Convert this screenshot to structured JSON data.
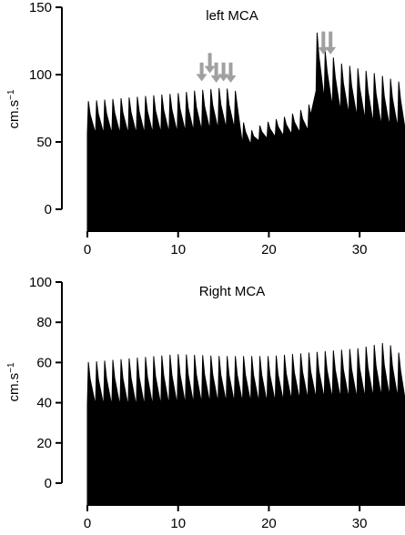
{
  "chart_data": [
    {
      "type": "area",
      "title": "left MCA",
      "ylabel": "cm.s",
      "ylabel_superscript": "−1",
      "xlim": [
        0,
        35
      ],
      "ylim": [
        0,
        150
      ],
      "x_ticks": [
        0,
        10,
        20,
        30
      ],
      "y_ticks": [
        0,
        50,
        100,
        150
      ],
      "x_tick_labels": [
        "0",
        "10",
        "20",
        "30"
      ],
      "y_tick_labels": [
        "0",
        "50",
        "100",
        "150"
      ],
      "baseline_value": -10,
      "color": "#000000",
      "beat_period_s": 0.9,
      "series": [
        {
          "envelope_x": [
            0,
            5,
            10,
            12,
            15,
            16.3,
            16.8,
            17.5,
            18,
            18.5,
            19,
            20,
            22,
            24,
            24.8,
            25.2,
            26,
            27,
            28,
            30,
            32,
            35
          ],
          "peak": [
            80,
            83,
            86,
            88,
            90,
            88,
            70,
            60,
            58,
            60,
            62,
            65,
            69,
            75,
            80,
            133,
            118,
            113,
            108,
            104,
            100,
            93
          ],
          "trough": [
            56,
            56,
            57,
            58,
            60,
            60,
            50,
            45,
            48,
            50,
            51,
            53,
            55,
            58,
            60,
            88,
            82,
            76,
            72,
            68,
            62,
            60
          ]
        }
      ],
      "annotation_arrows": {
        "color": "#a0a0a0",
        "x": [
          12.6,
          13.5,
          14.2,
          15.0,
          15.8,
          26.0,
          26.8
        ],
        "y_top": [
          109,
          116,
          109,
          109,
          109,
          132,
          132
        ],
        "y_tip": [
          95,
          101,
          94,
          95,
          94,
          115,
          115
        ]
      }
    },
    {
      "type": "area",
      "title": "Right MCA",
      "ylabel": "cm.s",
      "ylabel_superscript": "−1",
      "xlim": [
        0,
        35
      ],
      "ylim": [
        0,
        100
      ],
      "x_ticks": [
        0,
        10,
        20,
        30
      ],
      "y_ticks": [
        0,
        20,
        40,
        60,
        80,
        100
      ],
      "x_tick_labels": [
        "0",
        "10",
        "20",
        "30"
      ],
      "y_tick_labels": [
        "0",
        "20",
        "40",
        "60",
        "80",
        "100"
      ],
      "baseline_value": -8,
      "color": "#000000",
      "beat_period_s": 0.9,
      "series": [
        {
          "envelope_x": [
            0,
            5,
            10,
            15,
            20,
            25,
            30,
            33,
            35
          ],
          "peak": [
            60,
            62,
            64,
            63,
            63,
            65,
            67,
            70,
            62
          ],
          "trough": [
            39,
            38,
            39,
            40,
            40,
            42,
            42,
            43,
            42
          ]
        }
      ]
    }
  ]
}
